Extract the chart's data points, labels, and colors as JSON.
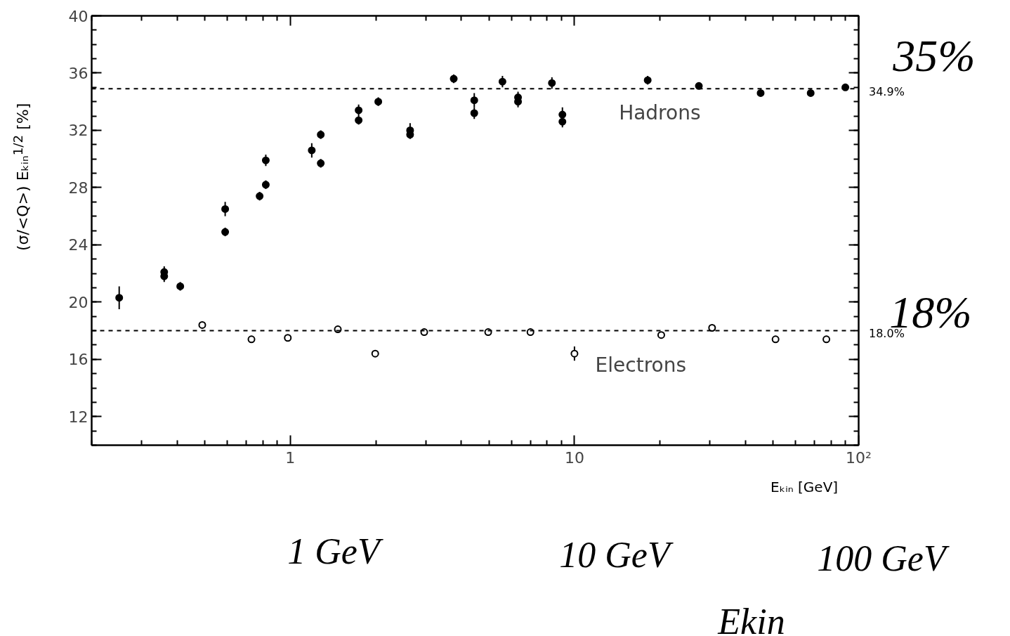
{
  "chart_data": {
    "type": "scatter",
    "xlabel": "Eₖᵢₙ [GeV]",
    "ylabel": "(σ/<Q>) Eₖᵢₙ$^{1/2}$ [%]",
    "log": "x",
    "grid": false,
    "marker": "circle",
    "xlim": [
      0.2,
      100
    ],
    "xticks": [
      1,
      10,
      {
        "value": 100,
        "label": "10²"
      }
    ],
    "ylim": [
      10,
      40
    ],
    "yticks": [
      12,
      16,
      20,
      24,
      28,
      32,
      36,
      40
    ],
    "series": [
      {
        "name": "Hadrons",
        "color": "#000000",
        "x": [
          0.25,
          0.36,
          0.36,
          0.41,
          0.59,
          0.59,
          0.78,
          0.82,
          0.82,
          1.19,
          1.28,
          1.28,
          1.74,
          1.74,
          2.04,
          2.64,
          2.64,
          3.76,
          4.44,
          4.44,
          5.58,
          6.33,
          6.33,
          8.33,
          9.07,
          9.07,
          18.1,
          27.4,
          45.2,
          67.8,
          89.8
        ],
        "values": [
          20.3,
          22.1,
          21.8,
          21.1,
          26.5,
          24.9,
          27.4,
          29.9,
          28.2,
          30.6,
          31.7,
          29.7,
          33.4,
          32.7,
          34.0,
          32.0,
          31.7,
          35.6,
          34.1,
          33.2,
          35.4,
          34.3,
          34.0,
          35.3,
          33.1,
          32.6,
          35.5,
          35.1,
          34.6,
          34.6,
          35.0
        ],
        "errors": [
          0.8,
          0.4,
          0.4,
          0.3,
          0.5,
          0.3,
          0.3,
          0.4,
          0.3,
          0.5,
          0.3,
          0.3,
          0.4,
          0.3,
          0.3,
          0.5,
          0.3,
          0.3,
          0.5,
          0.4,
          0.4,
          0.4,
          0.4,
          0.4,
          0.5,
          0.4,
          0.3,
          0.2,
          0.2,
          0.2,
          0.2
        ]
      },
      {
        "name": "Electrons",
        "color": "#000000",
        "x": [
          0.49,
          0.73,
          0.98,
          1.47,
          1.99,
          2.96,
          4.97,
          7.0,
          10.0,
          20.2,
          30.5,
          51,
          77
        ],
        "values": [
          18.4,
          17.4,
          17.5,
          18.1,
          16.4,
          17.9,
          17.9,
          17.9,
          16.4,
          17.7,
          18.2,
          17.4,
          17.4
        ],
        "errors": [
          null,
          null,
          null,
          null,
          null,
          null,
          null,
          null,
          0.5,
          null,
          null,
          null,
          null
        ]
      }
    ],
    "ref_lines": [
      {
        "axis": "y",
        "value": 34.9,
        "label": "34.9%",
        "line_style": "dashed",
        "color": "#000000"
      },
      {
        "axis": "y",
        "value": 18.0,
        "label": "18.0%",
        "line_style": "dashed",
        "color": "#000000"
      }
    ],
    "annotations": [
      "35%",
      "18%",
      "1 GeV",
      "10 GeV",
      "100 GeV",
      "Ekin"
    ]
  }
}
